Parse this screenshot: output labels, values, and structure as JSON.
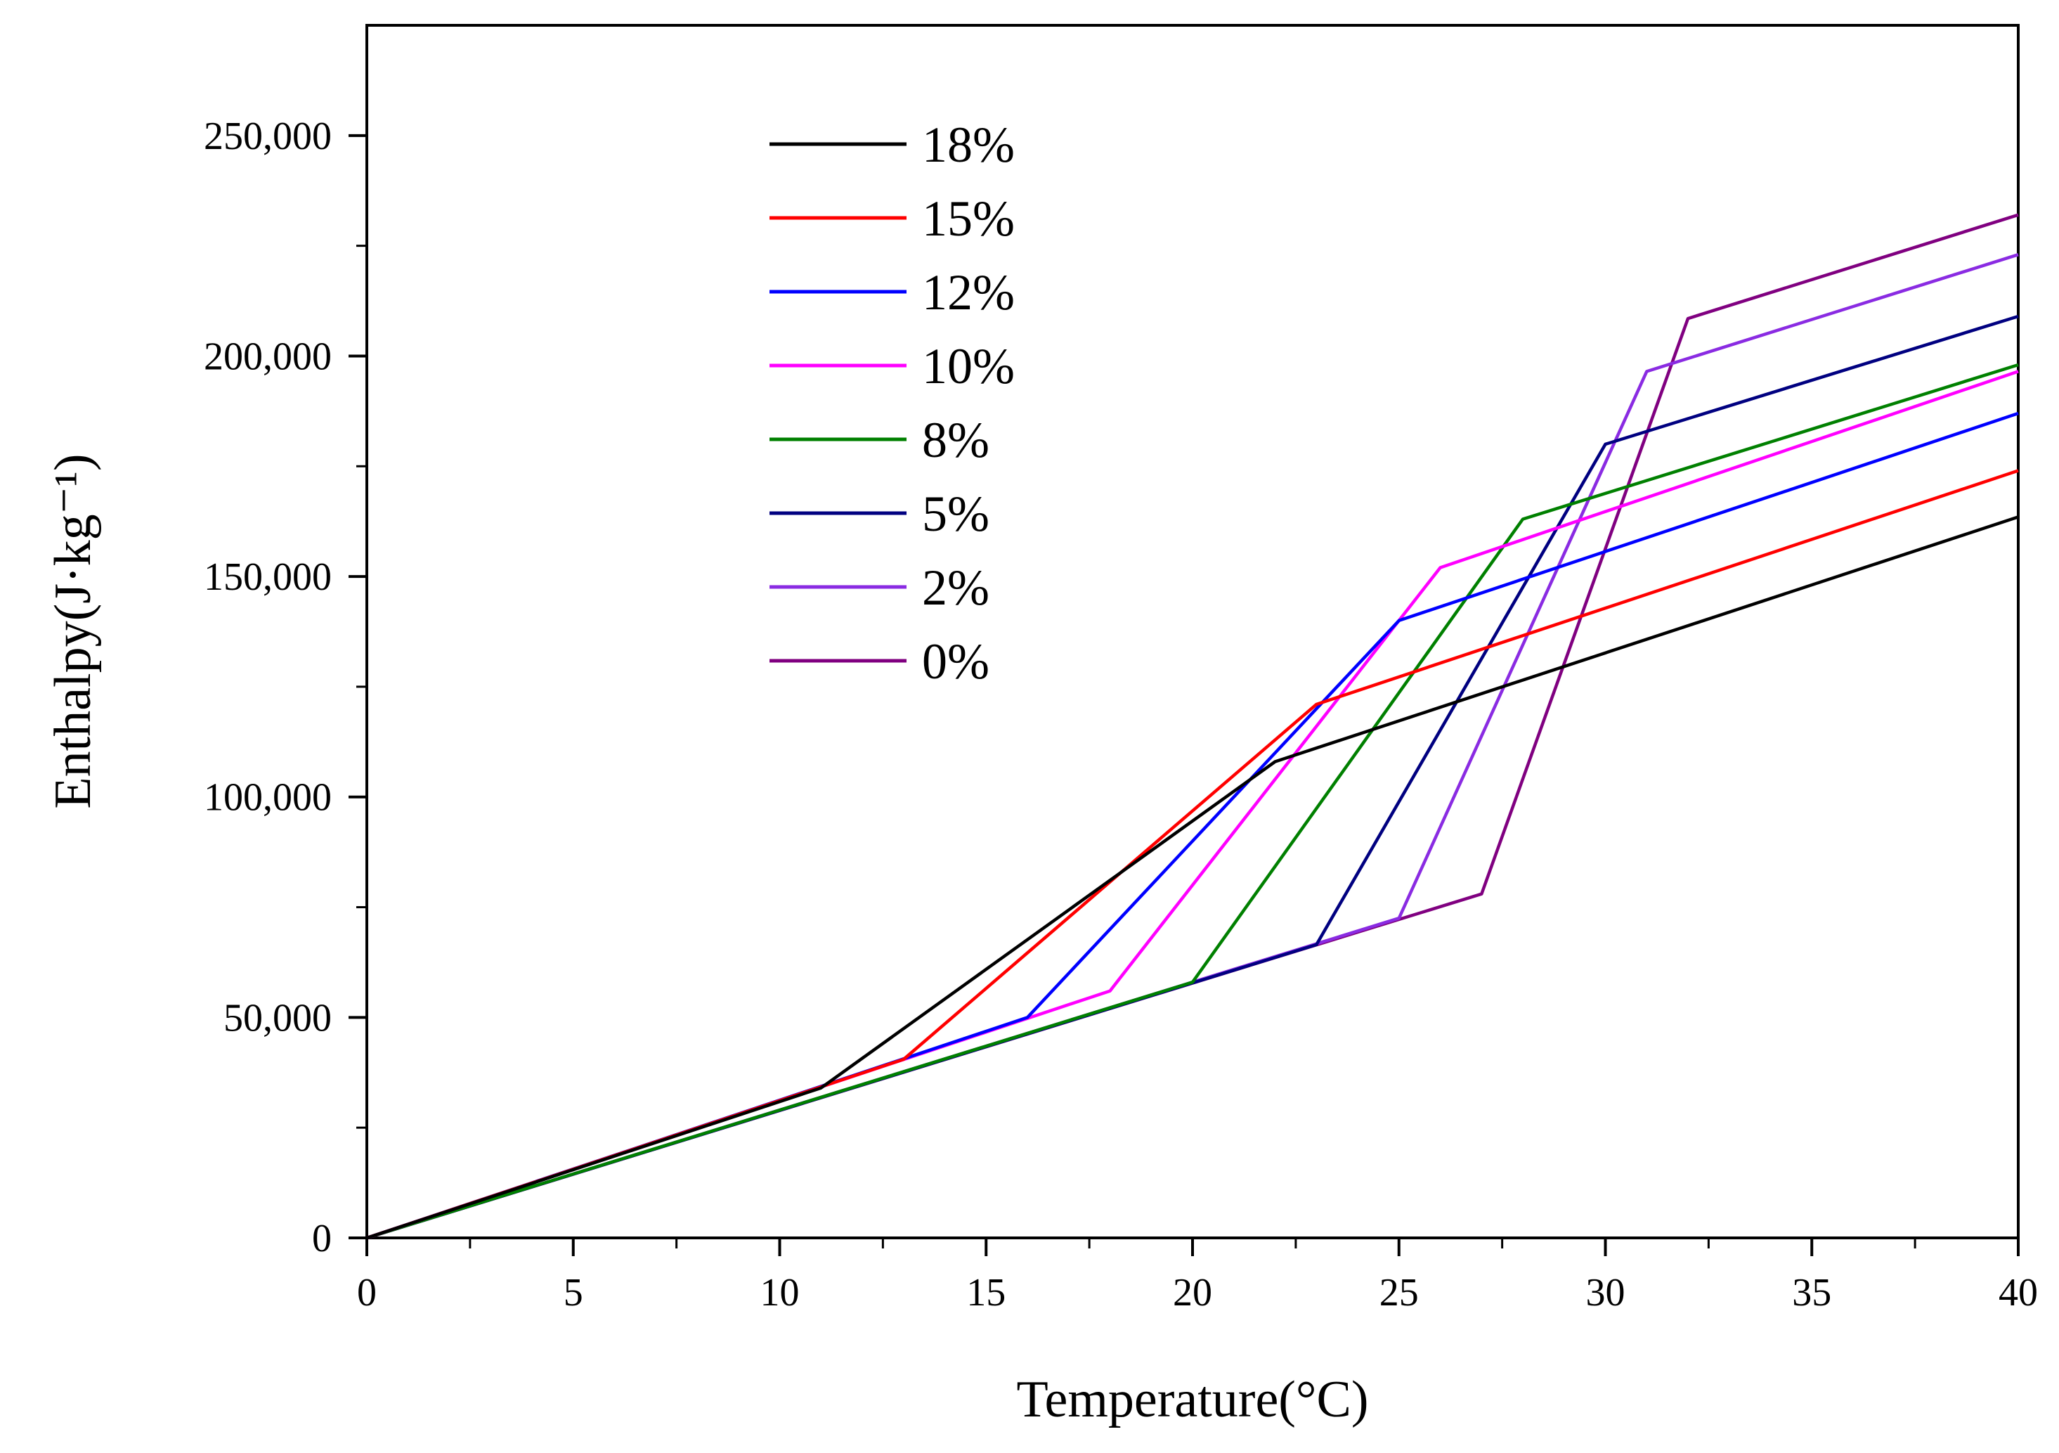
{
  "chart_data": {
    "type": "line",
    "title": "",
    "xlabel": "Temperature(°C)",
    "ylabel": "Enthalpy(J·kg⁻¹)",
    "xlim": [
      0,
      40
    ],
    "ylim": [
      0,
      275000
    ],
    "x_ticks": [
      0,
      5,
      10,
      15,
      20,
      25,
      30,
      35,
      40
    ],
    "x_tick_labels": [
      "0",
      "5",
      "10",
      "15",
      "20",
      "25",
      "30",
      "35",
      "40"
    ],
    "y_ticks": [
      0,
      50000,
      100000,
      150000,
      200000,
      250000
    ],
    "y_tick_labels": [
      "0",
      "50,000",
      "100,000",
      "150,000",
      "200,000",
      "250,000"
    ],
    "grid": false,
    "legend_position": "top-left",
    "series": [
      {
        "name": "18%",
        "color": "#000000",
        "x": [
          0,
          11,
          22,
          40
        ],
        "y": [
          0,
          34000,
          108000,
          163500
        ]
      },
      {
        "name": "15%",
        "color": "#ff0000",
        "x": [
          0,
          13,
          23,
          40
        ],
        "y": [
          0,
          40500,
          121000,
          174000
        ]
      },
      {
        "name": "12%",
        "color": "#0000ff",
        "x": [
          0,
          16,
          25,
          40
        ],
        "y": [
          0,
          50000,
          140000,
          187000
        ]
      },
      {
        "name": "10%",
        "color": "#ff00ff",
        "x": [
          0,
          18,
          26,
          40
        ],
        "y": [
          0,
          56000,
          152000,
          196500
        ]
      },
      {
        "name": "8%",
        "color": "#008000",
        "x": [
          0,
          20,
          28,
          40
        ],
        "y": [
          0,
          58000,
          163000,
          198000
        ]
      },
      {
        "name": "5%",
        "color": "#000080",
        "x": [
          0,
          23,
          30,
          40
        ],
        "y": [
          0,
          66500,
          180000,
          209000
        ]
      },
      {
        "name": "2%",
        "color": "#8a2be2",
        "x": [
          0,
          25,
          31,
          40
        ],
        "y": [
          0,
          72500,
          196500,
          223000
        ]
      },
      {
        "name": "0%",
        "color": "#800080",
        "x": [
          0,
          27,
          32,
          40
        ],
        "y": [
          0,
          78000,
          208500,
          232000
        ]
      }
    ]
  }
}
